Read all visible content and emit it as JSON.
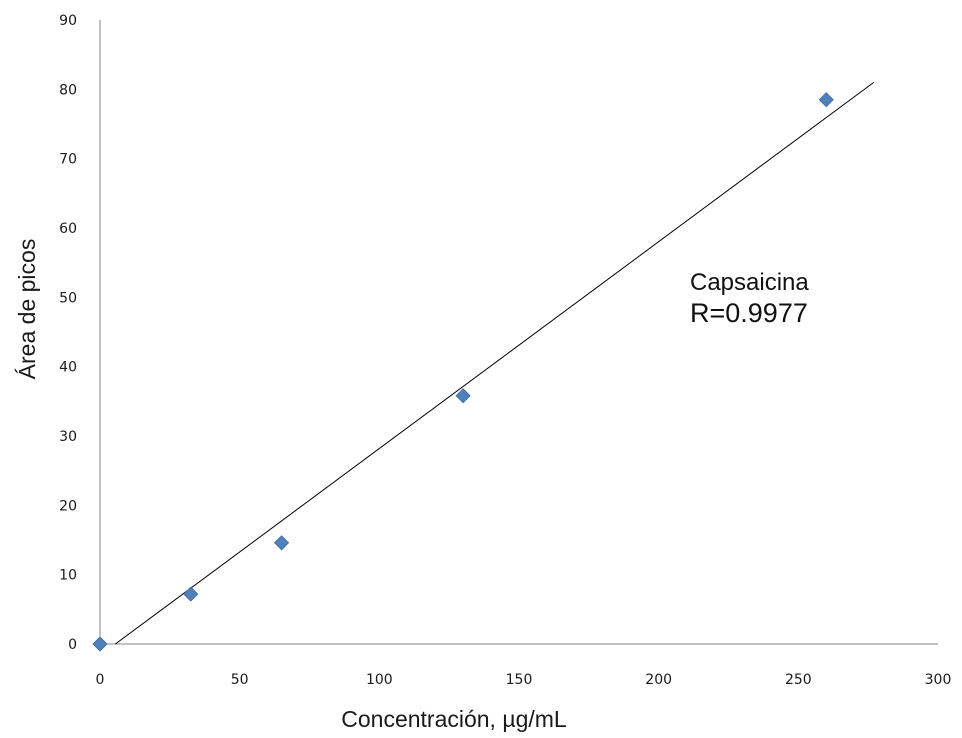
{
  "chart_data": {
    "type": "scatter",
    "xlabel": "Concentración, µg/mL",
    "ylabel": "Área de picos",
    "xlim": [
      0,
      300
    ],
    "ylim": [
      0,
      90
    ],
    "xticks": [
      "0",
      "50",
      "100",
      "150",
      "200",
      "250",
      "300"
    ],
    "yticks": [
      "0",
      "10",
      "20",
      "30",
      "40",
      "50",
      "60",
      "70",
      "80",
      "90"
    ],
    "grid": false,
    "series": [
      {
        "x": [
          0,
          32.5,
          65,
          130,
          260
        ],
        "y": [
          0,
          7.2,
          14.6,
          35.8,
          78.5
        ],
        "marker": "diamond",
        "color": "#4f81bd"
      }
    ],
    "trendline": {
      "type": "linear",
      "x": [
        5.5,
        277
      ],
      "y": [
        0,
        81
      ],
      "color": "#000000"
    },
    "annotation": {
      "line1": "Capsaicina",
      "line2": "R=0.9977"
    }
  }
}
